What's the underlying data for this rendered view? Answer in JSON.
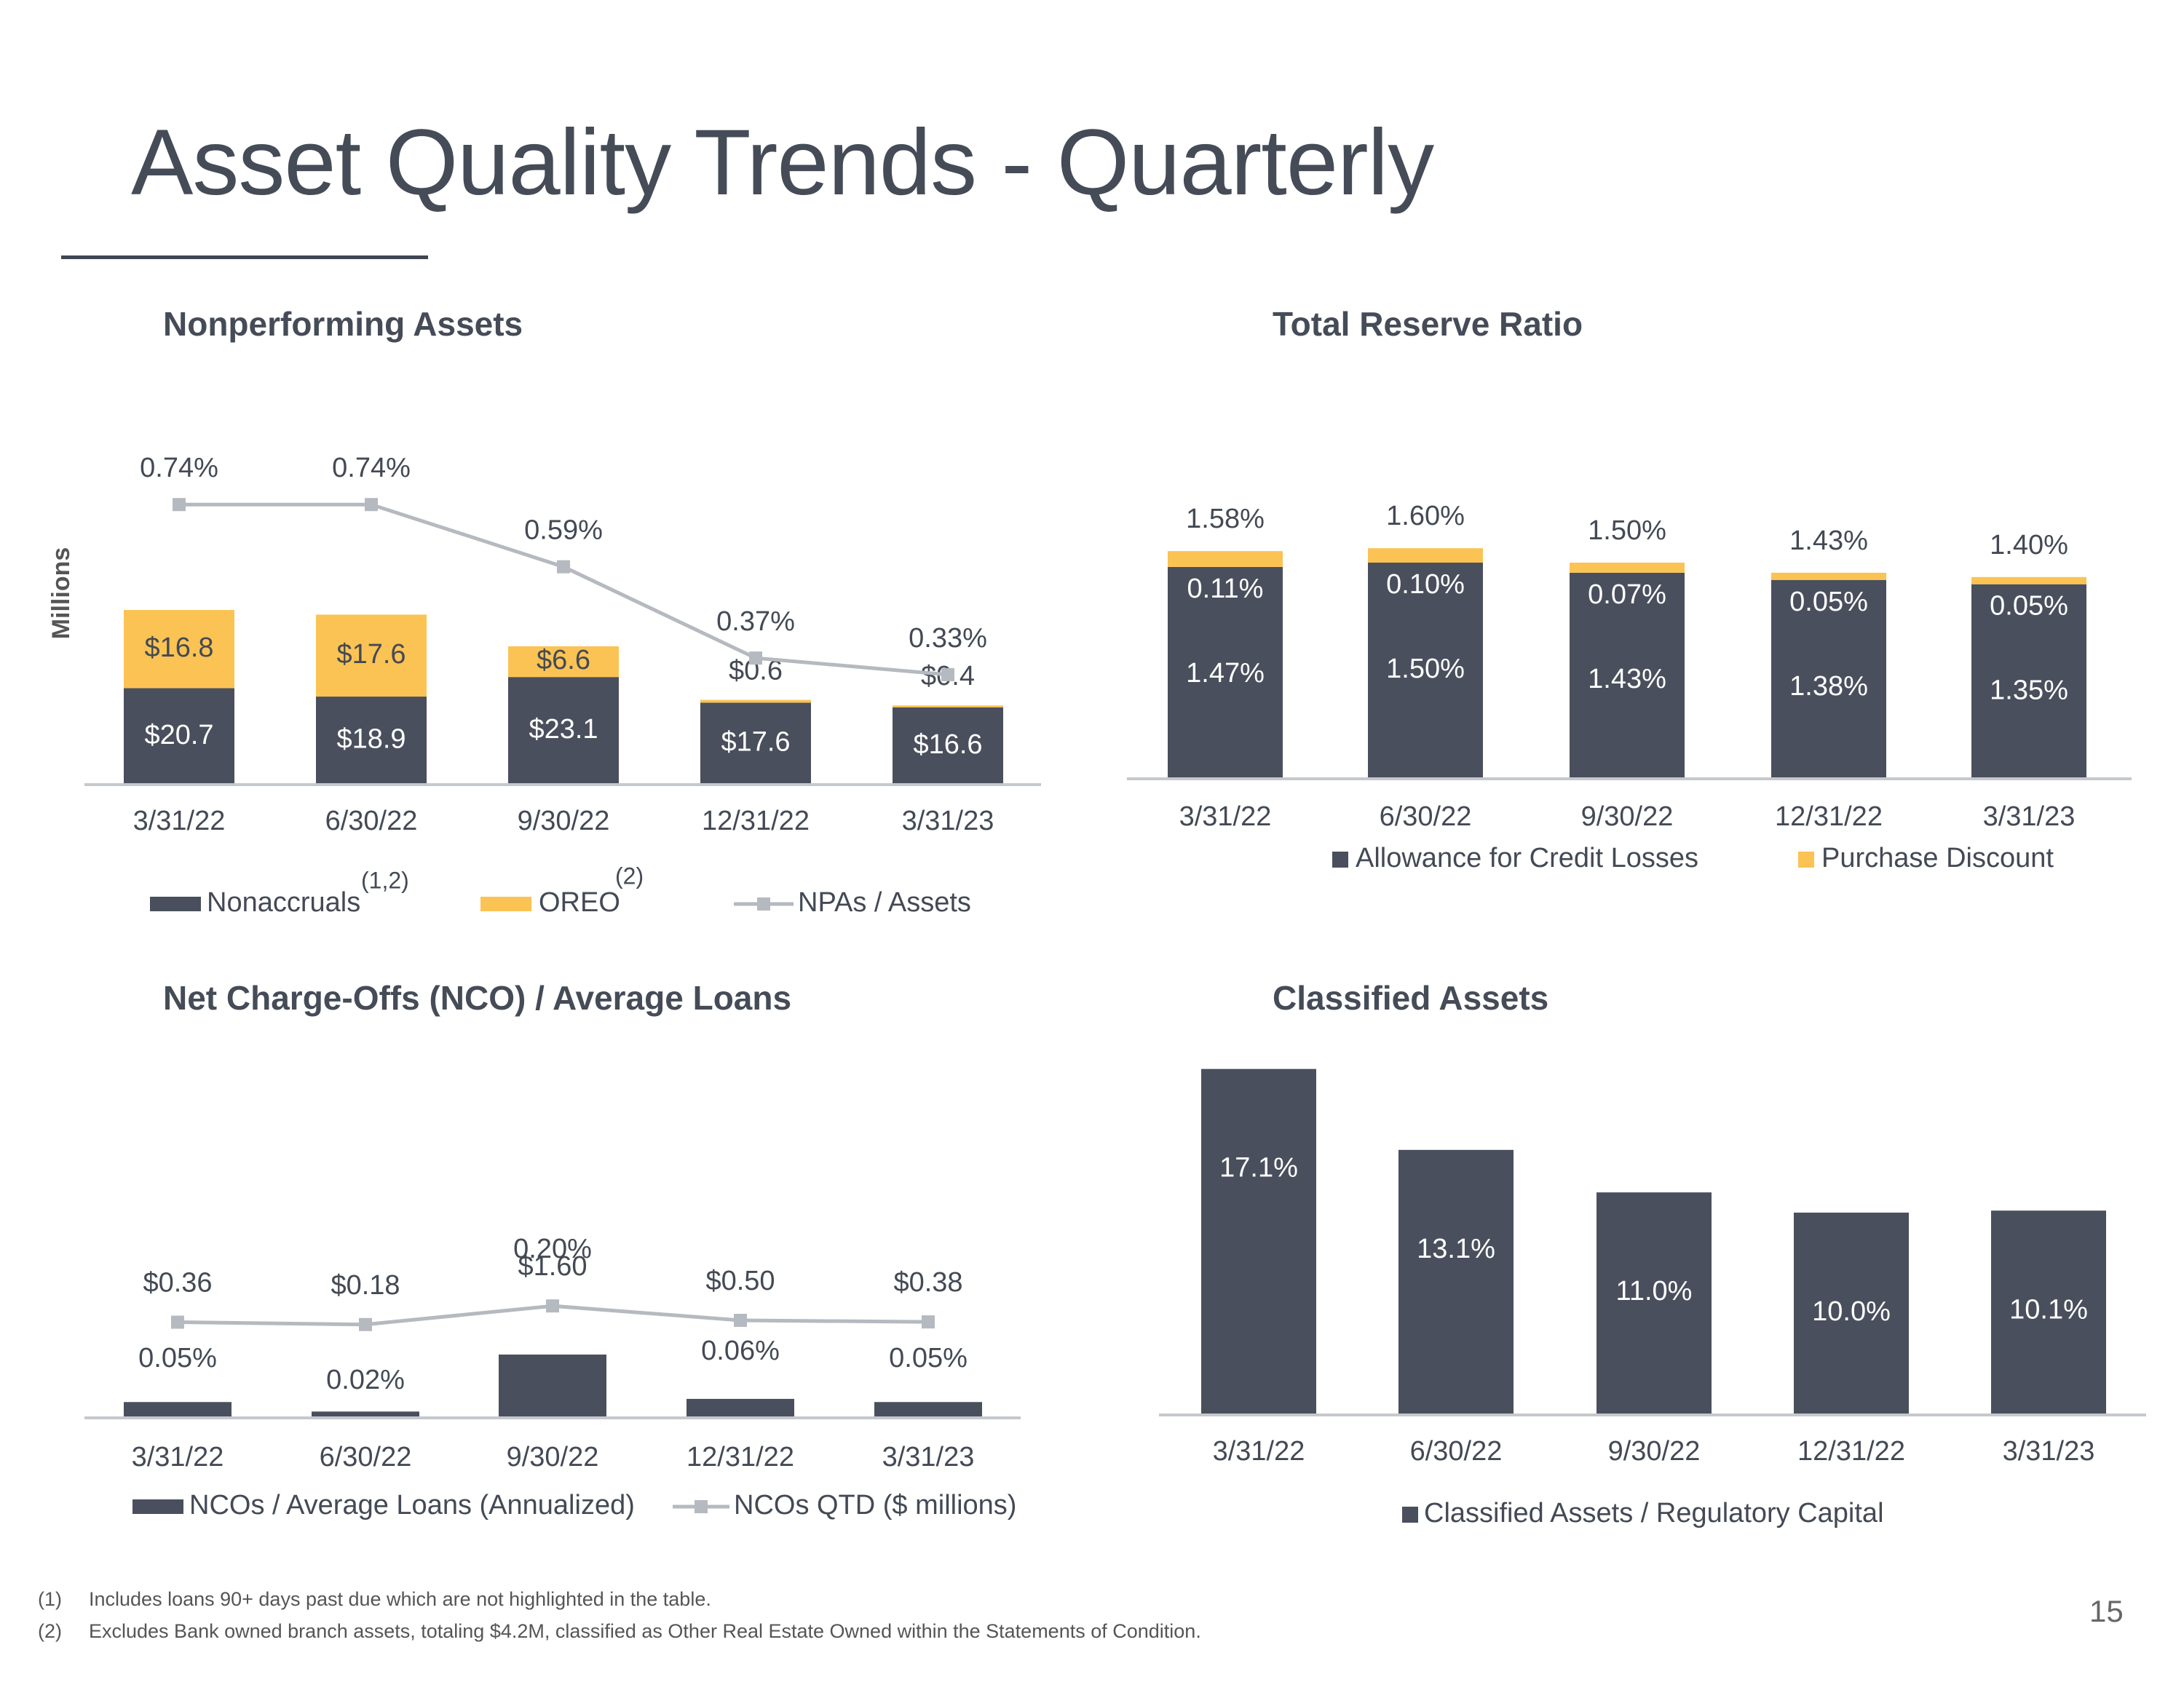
{
  "title": "Asset Quality Trends - Quarterly",
  "page_number": "15",
  "colors": {
    "dark": "#4a4f5d",
    "gold": "#fbc354",
    "line": "#b5b9c0",
    "axis": "#c5c8cd",
    "text": "#434a55"
  },
  "footnotes": [
    {
      "num": "(1)",
      "text": "Includes loans 90+ days past due which are not highlighted in the table."
    },
    {
      "num": "(2)",
      "text": "Excludes Bank owned branch assets, totaling $4.2M, classified as Other Real Estate Owned within the Statements of Condition."
    }
  ],
  "chart_data": [
    {
      "id": "npa",
      "type": "bar",
      "stacked": true,
      "title": "Nonperforming Assets",
      "ylabel": "Millions",
      "categories": [
        "3/31/22",
        "6/30/22",
        "9/30/22",
        "12/31/22",
        "3/31/23"
      ],
      "series": [
        {
          "name": "Nonaccruals",
          "superscript": "(1,2)",
          "values": [
            20.7,
            18.9,
            23.1,
            17.6,
            16.6
          ],
          "labels": [
            "$20.7",
            "$18.9",
            "$23.1",
            "$17.6",
            "$16.6"
          ]
        },
        {
          "name": "OREO",
          "superscript": "(2)",
          "values": [
            16.8,
            17.6,
            6.6,
            0.6,
            0.4
          ],
          "labels": [
            "$16.8",
            "$17.6",
            "$6.6",
            "$0.6",
            "$0.4"
          ]
        }
      ],
      "line": {
        "name": "NPAs / Assets",
        "values": [
          0.74,
          0.74,
          0.59,
          0.37,
          0.33
        ],
        "labels": [
          "0.74%",
          "0.74%",
          "0.59%",
          "0.37%",
          "0.33%"
        ]
      }
    },
    {
      "id": "reserve",
      "type": "bar",
      "stacked": true,
      "title": "Total Reserve Ratio",
      "categories": [
        "3/31/22",
        "6/30/22",
        "9/30/22",
        "12/31/22",
        "3/31/23"
      ],
      "series": [
        {
          "name": "Allowance for Credit Losses",
          "values": [
            1.47,
            1.5,
            1.43,
            1.38,
            1.35
          ],
          "labels": [
            "1.47%",
            "1.50%",
            "1.43%",
            "1.38%",
            "1.35%"
          ]
        },
        {
          "name": "Purchase Discount",
          "values": [
            0.11,
            0.1,
            0.07,
            0.05,
            0.05
          ],
          "labels": [
            "0.11%",
            "0.10%",
            "0.07%",
            "0.05%",
            "0.05%"
          ]
        }
      ],
      "totals": [
        "1.58%",
        "1.60%",
        "1.50%",
        "1.43%",
        "1.40%"
      ]
    },
    {
      "id": "nco",
      "type": "bar",
      "title": "Net Charge-Offs (NCO) / Average Loans",
      "categories": [
        "3/31/22",
        "6/30/22",
        "9/30/22",
        "12/31/22",
        "3/31/23"
      ],
      "series": [
        {
          "name": "NCOs / Average Loans (Annualized)",
          "values": [
            0.05,
            0.02,
            0.2,
            0.06,
            0.05
          ],
          "labels": [
            "0.05%",
            "0.02%",
            "0.20%",
            "0.06%",
            "0.05%"
          ]
        }
      ],
      "line": {
        "name": "NCOs QTD ($ millions)",
        "values": [
          0.36,
          0.18,
          1.6,
          0.5,
          0.38
        ],
        "labels": [
          "$0.36",
          "$0.18",
          "$1.60",
          "$0.50",
          "$0.38"
        ]
      }
    },
    {
      "id": "classified",
      "type": "bar",
      "title": "Classified Assets",
      "categories": [
        "3/31/22",
        "6/30/22",
        "9/30/22",
        "12/31/22",
        "3/31/23"
      ],
      "series": [
        {
          "name": "Classified Assets / Regulatory Capital",
          "values": [
            17.1,
            13.1,
            11.0,
            10.0,
            10.1
          ],
          "labels": [
            "17.1%",
            "13.1%",
            "11.0%",
            "10.0%",
            "10.1%"
          ]
        }
      ]
    }
  ]
}
